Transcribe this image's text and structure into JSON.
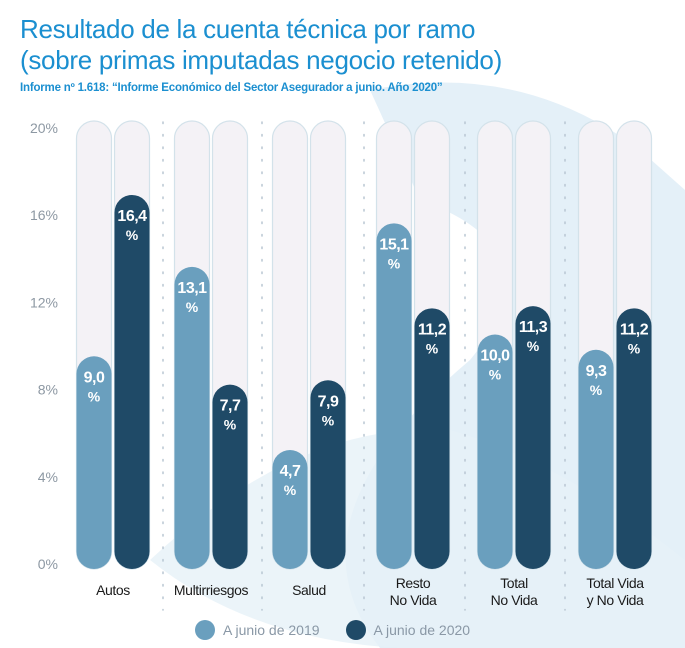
{
  "header": {
    "title_line1": "Resultado de la cuenta técnica por ramo",
    "title_line2": "(sobre primas imputadas negocio retenido)",
    "subtitle": "Informe nº 1.618: “Informe Económico del Sector Asegurador a junio. Año 2020”"
  },
  "colors": {
    "title": "#1b8fd0",
    "series_2019": "#6a9fbe",
    "series_2020": "#1f4a67",
    "track": "#f4f2f6"
  },
  "chart_data": {
    "type": "bar",
    "categories": [
      [
        "Autos"
      ],
      [
        "Multirriesgos"
      ],
      [
        "Salud"
      ],
      [
        "Resto",
        "No Vida"
      ],
      [
        "Total",
        "No Vida"
      ],
      [
        "Total Vida",
        "y No Vida"
      ]
    ],
    "series": [
      {
        "name": "A junio de 2019",
        "values": [
          9.0,
          13.1,
          4.7,
          15.1,
          10.0,
          9.3
        ],
        "labels": [
          "9,0",
          "13,1",
          "4,7",
          "15,1",
          "10,0",
          "9,3"
        ]
      },
      {
        "name": "A junio de 2020",
        "values": [
          16.4,
          7.7,
          7.9,
          11.2,
          11.3,
          11.2
        ],
        "labels": [
          "16,4",
          "7,7",
          "7,9",
          "11,2",
          "11,3",
          "11,2"
        ]
      }
    ],
    "value_suffix": "%",
    "yticks": [
      "0%",
      "4%",
      "8%",
      "12%",
      "16%",
      "20%"
    ],
    "ytick_values": [
      0,
      4,
      8,
      12,
      16,
      20
    ],
    "ylim": [
      0,
      20
    ],
    "grid": false,
    "legend_position": "bottom"
  }
}
